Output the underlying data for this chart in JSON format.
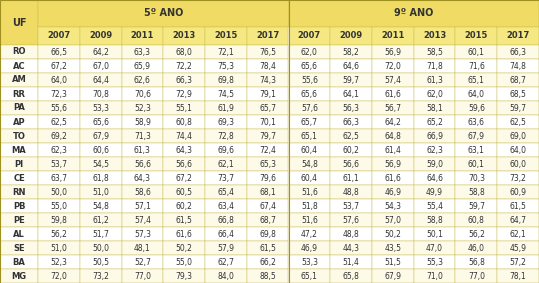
{
  "uf_col": [
    "RO",
    "AC",
    "AM",
    "RR",
    "PA",
    "AP",
    "TO",
    "MA",
    "PI",
    "CE",
    "RN",
    "PB",
    "PE",
    "AL",
    "SE",
    "BA",
    "MG"
  ],
  "anos5": {
    "2007": [
      66.5,
      67.2,
      64.0,
      72.3,
      55.6,
      62.5,
      69.2,
      62.3,
      53.7,
      63.7,
      50.0,
      55.0,
      59.8,
      56.2,
      51.0,
      52.3,
      72.0
    ],
    "2009": [
      64.2,
      67.0,
      64.4,
      70.8,
      53.3,
      65.6,
      67.9,
      60.6,
      54.5,
      61.8,
      51.0,
      54.8,
      61.2,
      51.7,
      50.0,
      50.5,
      73.2
    ],
    "2011": [
      63.3,
      65.9,
      62.6,
      70.6,
      52.3,
      58.9,
      71.3,
      61.3,
      56.6,
      64.3,
      58.6,
      57.1,
      57.4,
      57.3,
      48.1,
      52.7,
      77.0
    ],
    "2013": [
      68.0,
      72.2,
      66.3,
      72.9,
      55.1,
      60.8,
      74.4,
      64.3,
      56.6,
      67.2,
      60.5,
      60.2,
      61.5,
      61.6,
      50.2,
      55.0,
      79.3
    ],
    "2015": [
      72.1,
      75.3,
      69.8,
      74.5,
      61.9,
      69.3,
      72.8,
      69.6,
      62.1,
      73.7,
      65.4,
      63.4,
      66.8,
      66.4,
      57.9,
      62.7,
      84.0
    ],
    "2017": [
      76.5,
      78.4,
      74.3,
      79.1,
      65.7,
      70.1,
      79.7,
      72.4,
      65.3,
      79.6,
      68.1,
      67.4,
      68.7,
      69.8,
      61.5,
      66.2,
      88.5
    ]
  },
  "anos9": {
    "2007": [
      62.0,
      65.6,
      55.6,
      65.6,
      57.6,
      65.7,
      65.1,
      60.4,
      54.8,
      60.4,
      51.6,
      51.8,
      51.6,
      47.2,
      46.9,
      53.3,
      65.1
    ],
    "2009": [
      58.2,
      64.6,
      59.7,
      64.1,
      56.3,
      66.3,
      62.5,
      60.2,
      56.6,
      61.1,
      48.8,
      53.7,
      57.6,
      48.8,
      44.3,
      51.4,
      65.8
    ],
    "2011": [
      56.9,
      72.0,
      57.4,
      61.6,
      56.7,
      64.2,
      64.8,
      61.4,
      56.9,
      61.6,
      46.9,
      54.3,
      57.0,
      50.2,
      43.5,
      51.5,
      67.9
    ],
    "2013": [
      58.5,
      71.8,
      61.3,
      62.0,
      58.1,
      65.2,
      66.9,
      62.3,
      59.0,
      64.6,
      49.9,
      55.4,
      58.8,
      50.1,
      47.0,
      55.3,
      71.0
    ],
    "2015": [
      60.1,
      71.6,
      65.1,
      64.0,
      59.6,
      63.6,
      67.9,
      63.1,
      60.1,
      70.3,
      58.8,
      59.7,
      60.8,
      56.2,
      46.0,
      56.8,
      77.0
    ],
    "2017": [
      66.3,
      74.8,
      68.7,
      68.5,
      59.7,
      62.5,
      69.0,
      64.0,
      60.0,
      73.2,
      60.9,
      61.5,
      64.7,
      62.1,
      45.9,
      57.2,
      78.1
    ]
  },
  "col_years": [
    "2007",
    "2009",
    "2011",
    "2013",
    "2015",
    "2017"
  ],
  "yellow_header": "#F0DC64",
  "yellow_subheader": "#F5E882",
  "yellow_row_odd": "#FDFBE8",
  "row_even": "#FFFFFF",
  "border_color": "#C8B84A",
  "text_color": "#333333"
}
